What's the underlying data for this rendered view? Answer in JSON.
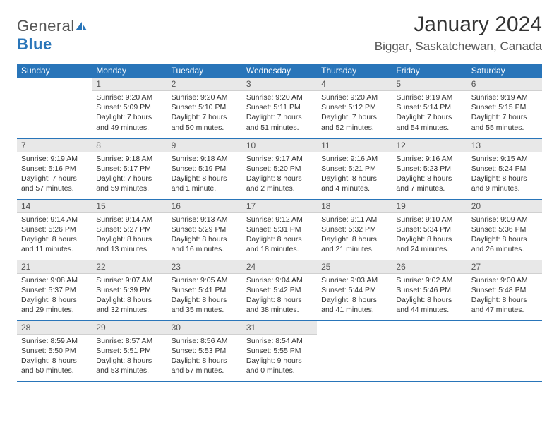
{
  "logo": {
    "text1": "General",
    "text2": "Blue"
  },
  "header": {
    "title": "January 2024",
    "location": "Biggar, Saskatchewan, Canada"
  },
  "colors": {
    "brand": "#2975b9",
    "header_bg": "#2975b9",
    "header_fg": "#ffffff",
    "daynum_bg": "#e8e8e8",
    "rule": "#2975b9"
  },
  "layout": {
    "cols": 7,
    "rows": 5,
    "start_offset": 1,
    "days_in_month": 31
  },
  "weekdays": [
    "Sunday",
    "Monday",
    "Tuesday",
    "Wednesday",
    "Thursday",
    "Friday",
    "Saturday"
  ],
  "days": [
    {
      "n": 1,
      "sr": "9:20 AM",
      "ss": "5:09 PM",
      "dl": "7 hours and 49 minutes."
    },
    {
      "n": 2,
      "sr": "9:20 AM",
      "ss": "5:10 PM",
      "dl": "7 hours and 50 minutes."
    },
    {
      "n": 3,
      "sr": "9:20 AM",
      "ss": "5:11 PM",
      "dl": "7 hours and 51 minutes."
    },
    {
      "n": 4,
      "sr": "9:20 AM",
      "ss": "5:12 PM",
      "dl": "7 hours and 52 minutes."
    },
    {
      "n": 5,
      "sr": "9:19 AM",
      "ss": "5:14 PM",
      "dl": "7 hours and 54 minutes."
    },
    {
      "n": 6,
      "sr": "9:19 AM",
      "ss": "5:15 PM",
      "dl": "7 hours and 55 minutes."
    },
    {
      "n": 7,
      "sr": "9:19 AM",
      "ss": "5:16 PM",
      "dl": "7 hours and 57 minutes."
    },
    {
      "n": 8,
      "sr": "9:18 AM",
      "ss": "5:17 PM",
      "dl": "7 hours and 59 minutes."
    },
    {
      "n": 9,
      "sr": "9:18 AM",
      "ss": "5:19 PM",
      "dl": "8 hours and 1 minute."
    },
    {
      "n": 10,
      "sr": "9:17 AM",
      "ss": "5:20 PM",
      "dl": "8 hours and 2 minutes."
    },
    {
      "n": 11,
      "sr": "9:16 AM",
      "ss": "5:21 PM",
      "dl": "8 hours and 4 minutes."
    },
    {
      "n": 12,
      "sr": "9:16 AM",
      "ss": "5:23 PM",
      "dl": "8 hours and 7 minutes."
    },
    {
      "n": 13,
      "sr": "9:15 AM",
      "ss": "5:24 PM",
      "dl": "8 hours and 9 minutes."
    },
    {
      "n": 14,
      "sr": "9:14 AM",
      "ss": "5:26 PM",
      "dl": "8 hours and 11 minutes."
    },
    {
      "n": 15,
      "sr": "9:14 AM",
      "ss": "5:27 PM",
      "dl": "8 hours and 13 minutes."
    },
    {
      "n": 16,
      "sr": "9:13 AM",
      "ss": "5:29 PM",
      "dl": "8 hours and 16 minutes."
    },
    {
      "n": 17,
      "sr": "9:12 AM",
      "ss": "5:31 PM",
      "dl": "8 hours and 18 minutes."
    },
    {
      "n": 18,
      "sr": "9:11 AM",
      "ss": "5:32 PM",
      "dl": "8 hours and 21 minutes."
    },
    {
      "n": 19,
      "sr": "9:10 AM",
      "ss": "5:34 PM",
      "dl": "8 hours and 24 minutes."
    },
    {
      "n": 20,
      "sr": "9:09 AM",
      "ss": "5:36 PM",
      "dl": "8 hours and 26 minutes."
    },
    {
      "n": 21,
      "sr": "9:08 AM",
      "ss": "5:37 PM",
      "dl": "8 hours and 29 minutes."
    },
    {
      "n": 22,
      "sr": "9:07 AM",
      "ss": "5:39 PM",
      "dl": "8 hours and 32 minutes."
    },
    {
      "n": 23,
      "sr": "9:05 AM",
      "ss": "5:41 PM",
      "dl": "8 hours and 35 minutes."
    },
    {
      "n": 24,
      "sr": "9:04 AM",
      "ss": "5:42 PM",
      "dl": "8 hours and 38 minutes."
    },
    {
      "n": 25,
      "sr": "9:03 AM",
      "ss": "5:44 PM",
      "dl": "8 hours and 41 minutes."
    },
    {
      "n": 26,
      "sr": "9:02 AM",
      "ss": "5:46 PM",
      "dl": "8 hours and 44 minutes."
    },
    {
      "n": 27,
      "sr": "9:00 AM",
      "ss": "5:48 PM",
      "dl": "8 hours and 47 minutes."
    },
    {
      "n": 28,
      "sr": "8:59 AM",
      "ss": "5:50 PM",
      "dl": "8 hours and 50 minutes."
    },
    {
      "n": 29,
      "sr": "8:57 AM",
      "ss": "5:51 PM",
      "dl": "8 hours and 53 minutes."
    },
    {
      "n": 30,
      "sr": "8:56 AM",
      "ss": "5:53 PM",
      "dl": "8 hours and 57 minutes."
    },
    {
      "n": 31,
      "sr": "8:54 AM",
      "ss": "5:55 PM",
      "dl": "9 hours and 0 minutes."
    }
  ],
  "labels": {
    "sunrise": "Sunrise:",
    "sunset": "Sunset:",
    "daylight": "Daylight:"
  }
}
